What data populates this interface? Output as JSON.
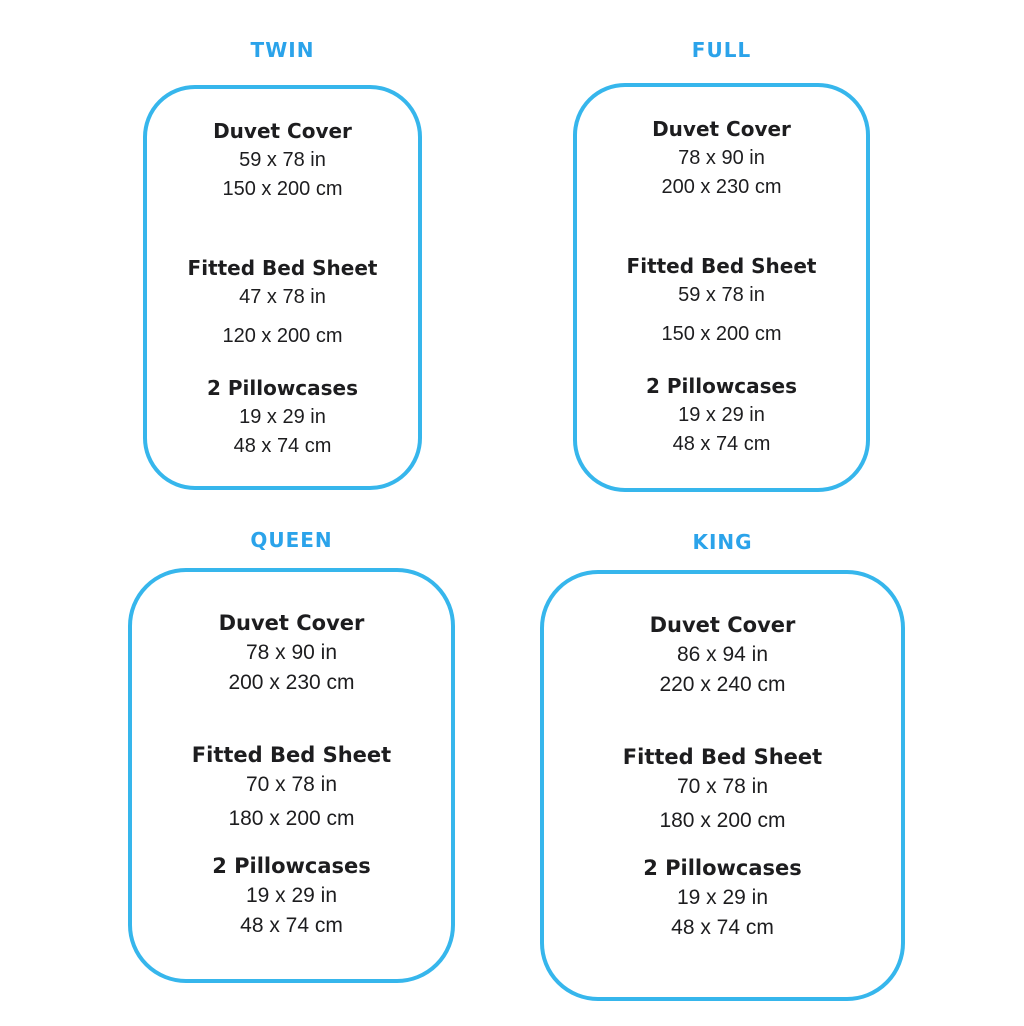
{
  "colors": {
    "accent_title_blue": "#2ba3ea",
    "panel_border_blue": "#36b6ec",
    "body_text": "#1d1d1f",
    "background": "#ffffff"
  },
  "panels": [
    {
      "title": "TWIN",
      "sections": [
        {
          "label": "Duvet Cover",
          "inches": "59 x 78 in",
          "cm": "150 x 200 cm"
        },
        {
          "label": "Fitted Bed Sheet",
          "inches": "47 x 78 in",
          "cm": "120 x 200 cm"
        },
        {
          "label": "2 Pillowcases",
          "inches": "19 x 29 in",
          "cm": "48 x 74 cm"
        }
      ]
    },
    {
      "title": "FULL",
      "sections": [
        {
          "label": "Duvet Cover",
          "inches": "78 x 90 in",
          "cm": "200 x 230 cm"
        },
        {
          "label": "Fitted Bed Sheet",
          "inches": "59 x 78 in",
          "cm": "150 x 200 cm"
        },
        {
          "label": "2 Pillowcases",
          "inches": "19 x 29 in",
          "cm": "48 x 74 cm"
        }
      ]
    },
    {
      "title": "QUEEN",
      "sections": [
        {
          "label": "Duvet Cover",
          "inches": "78 x 90 in",
          "cm": "200 x 230 cm"
        },
        {
          "label": "Fitted Bed Sheet",
          "inches": "70 x 78 in",
          "cm": "180 x 200 cm"
        },
        {
          "label": "2 Pillowcases",
          "inches": "19 x 29 in",
          "cm": "48 x 74 cm"
        }
      ]
    },
    {
      "title": "KING",
      "sections": [
        {
          "label": "Duvet Cover",
          "inches": "86 x 94 in",
          "cm": "220 x 240 cm"
        },
        {
          "label": "Fitted Bed Sheet",
          "inches": "70 x 78 in",
          "cm": "180 x 200 cm"
        },
        {
          "label": "2 Pillowcases",
          "inches": "19 x 29 in",
          "cm": "48 x 74 cm"
        }
      ]
    }
  ]
}
